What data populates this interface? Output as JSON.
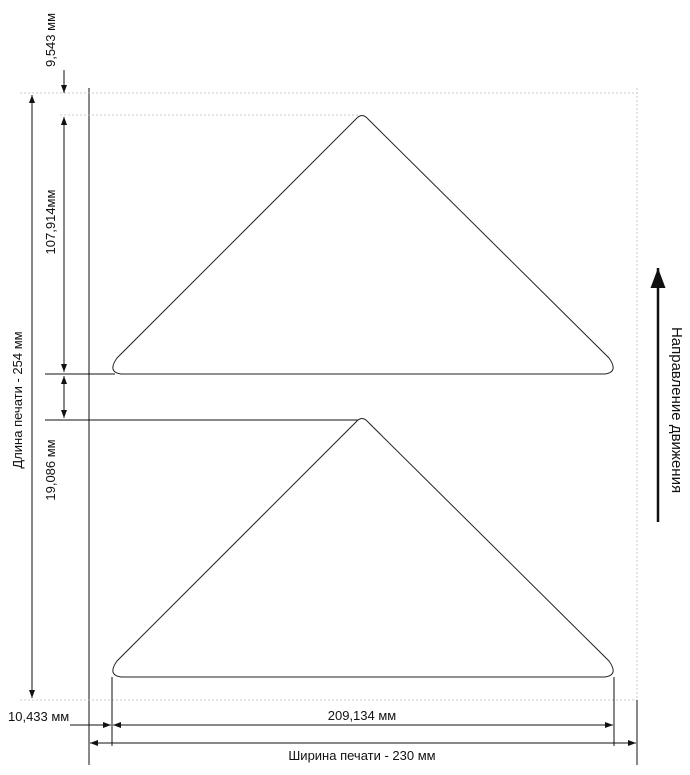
{
  "dimensions": {
    "top_margin": "9,543 мм",
    "triangle_height": "107,914мм",
    "print_length": "Длина печати - 254 мм",
    "gap": "19,086 мм",
    "side_margin": "10,433 мм",
    "triangle_width": "209,134 мм",
    "print_width": "Ширина печати - 230 мм"
  },
  "direction_label": "Направление движения"
}
